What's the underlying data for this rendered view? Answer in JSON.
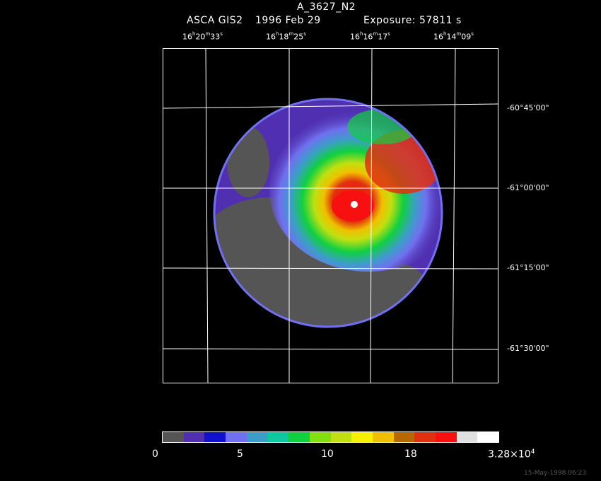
{
  "header": {
    "title": "A_3627_N2",
    "instrument": "ASCA GIS2",
    "date": "1996 Feb 29",
    "exposure": "Exposure: 57811 s"
  },
  "ra_labels": [
    {
      "h": "16",
      "m": "20",
      "s": "33"
    },
    {
      "h": "16",
      "m": "18",
      "s": "25"
    },
    {
      "h": "16",
      "m": "16",
      "s": "17"
    },
    {
      "h": "16",
      "m": "14",
      "s": "09"
    }
  ],
  "dec_labels": [
    "-60°45'00\"",
    "-61°00'00\"",
    "-61°15'00\"",
    "-61°30'00\""
  ],
  "colorbar": {
    "colors": [
      "#555555",
      "#5030b0",
      "#1010d0",
      "#7070f0",
      "#3c9ec8",
      "#10c8a0",
      "#10d040",
      "#80e010",
      "#c0e010",
      "#f8f000",
      "#f0c000",
      "#b86800",
      "#e03010",
      "#f81010",
      "#e0e0e0",
      "#ffffff"
    ],
    "labels": [
      "0",
      "5",
      "10",
      "18",
      "3.28×10"
    ],
    "label_exponent": "4"
  },
  "footer": {
    "timestamp": "15-May-1998 06:23"
  }
}
